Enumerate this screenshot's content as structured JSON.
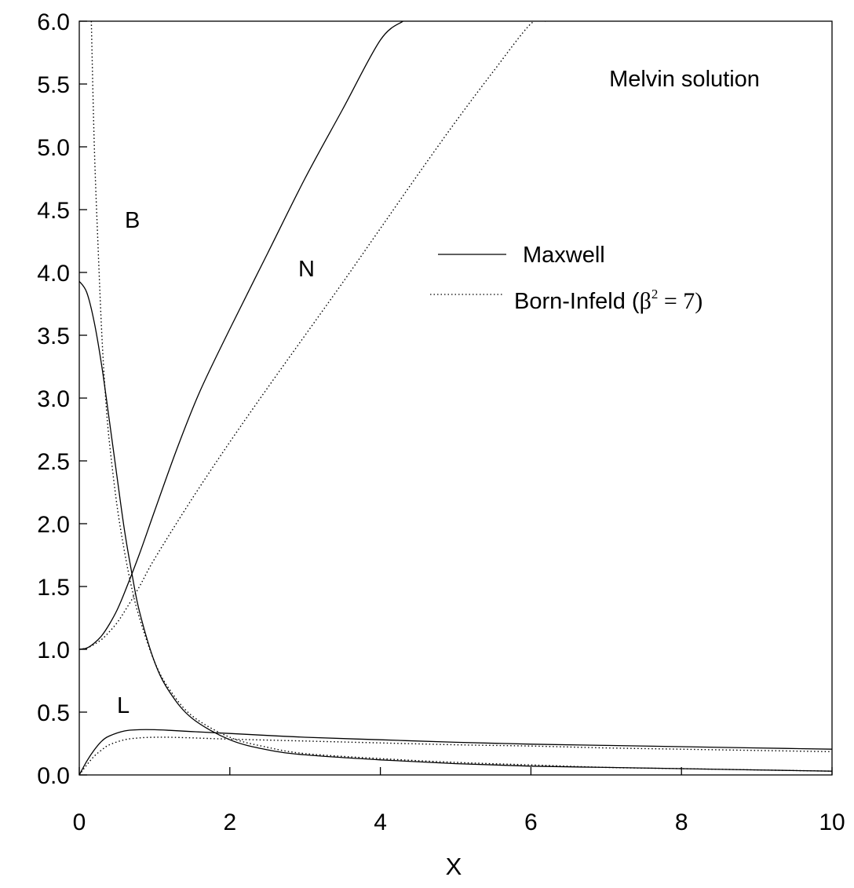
{
  "chart_data": {
    "type": "line",
    "title": "",
    "annotation": "Melvin solution",
    "xlabel": "X",
    "ylabel": "",
    "xlim": [
      0,
      10
    ],
    "ylim": [
      0,
      6
    ],
    "xticks": [
      "0",
      "2",
      "4",
      "6",
      "8",
      "10"
    ],
    "yticks": [
      "0.0",
      "0.5",
      "1.0",
      "1.5",
      "2.0",
      "2.5",
      "3.0",
      "3.5",
      "4.0",
      "4.5",
      "5.0",
      "5.5",
      "6.0"
    ],
    "legend": {
      "placement": "upper-right",
      "entries": [
        {
          "label": "Maxwell",
          "style": "solid"
        },
        {
          "label_prefix": "Born-Infeld (",
          "symbol": "β",
          "sup": "2",
          "label_suffix": " = 7)",
          "style": "dotted"
        }
      ]
    },
    "curve_labels": [
      {
        "text": "B",
        "x": 0.72,
        "y": 4.4
      },
      {
        "text": "N",
        "x": 3.03,
        "y": 4.0
      },
      {
        "text": "L",
        "x": 0.6,
        "y": 0.52
      }
    ],
    "series": [
      {
        "curve": "N",
        "model": "Maxwell",
        "style": "solid",
        "x": [
          0,
          0.1,
          0.2,
          0.3,
          0.4,
          0.5,
          0.6,
          0.8,
          1.0,
          1.3,
          1.6,
          2.0,
          2.5,
          3.0,
          3.5,
          4.0,
          4.3
        ],
        "y": [
          1.0,
          1.01,
          1.05,
          1.11,
          1.2,
          1.31,
          1.45,
          1.76,
          2.1,
          2.6,
          3.05,
          3.55,
          4.15,
          4.75,
          5.3,
          5.85,
          6.0
        ]
      },
      {
        "curve": "N",
        "model": "Born-Infeld",
        "style": "dotted",
        "x": [
          0,
          0.1,
          0.2,
          0.3,
          0.4,
          0.5,
          0.6,
          0.8,
          1.0,
          1.5,
          2.0,
          2.5,
          3.0,
          3.5,
          4.0,
          4.5,
          5.0,
          5.5,
          6.0,
          6.2
        ],
        "y": [
          1.0,
          1.01,
          1.04,
          1.08,
          1.14,
          1.21,
          1.3,
          1.5,
          1.72,
          2.2,
          2.65,
          3.08,
          3.5,
          3.92,
          4.35,
          4.78,
          5.2,
          5.6,
          5.98,
          6.0
        ]
      },
      {
        "curve": "B",
        "model": "Maxwell",
        "style": "solid",
        "x": [
          0,
          0.1,
          0.2,
          0.3,
          0.4,
          0.5,
          0.6,
          0.7,
          0.8,
          1.0,
          1.2,
          1.5,
          2.0,
          2.5,
          3.0,
          4.0,
          5.0,
          6.0,
          7.0,
          8.0,
          9.0,
          10.0
        ],
        "y": [
          3.93,
          3.84,
          3.6,
          3.25,
          2.82,
          2.38,
          1.95,
          1.6,
          1.3,
          0.9,
          0.66,
          0.45,
          0.28,
          0.2,
          0.16,
          0.12,
          0.09,
          0.07,
          0.06,
          0.05,
          0.04,
          0.03
        ]
      },
      {
        "curve": "B",
        "model": "Born-Infeld",
        "style": "dotted",
        "x": [
          0.16,
          0.2,
          0.25,
          0.3,
          0.35,
          0.4,
          0.5,
          0.6,
          0.7,
          0.8,
          1.0,
          1.2,
          1.5,
          2.0,
          2.5,
          3.0,
          4.0,
          5.0,
          6.0,
          7.0,
          8.0,
          9.0,
          10.0
        ],
        "y": [
          6.0,
          5.0,
          4.2,
          3.5,
          3.0,
          2.65,
          2.15,
          1.78,
          1.48,
          1.25,
          0.9,
          0.68,
          0.47,
          0.3,
          0.22,
          0.17,
          0.13,
          0.1,
          0.08,
          0.06,
          0.05,
          0.04,
          0.03
        ]
      },
      {
        "curve": "L",
        "model": "Maxwell",
        "style": "solid",
        "x": [
          0,
          0.1,
          0.2,
          0.3,
          0.4,
          0.6,
          0.8,
          1.0,
          1.2,
          1.5,
          2.0,
          3.0,
          4.0,
          5.0,
          6.0,
          7.0,
          8.0,
          9.0,
          10.0
        ],
        "y": [
          0.0,
          0.11,
          0.2,
          0.27,
          0.31,
          0.35,
          0.36,
          0.36,
          0.355,
          0.345,
          0.33,
          0.3,
          0.28,
          0.26,
          0.245,
          0.235,
          0.225,
          0.215,
          0.205
        ]
      },
      {
        "curve": "L",
        "model": "Born-Infeld",
        "style": "dotted",
        "x": [
          0,
          0.1,
          0.2,
          0.3,
          0.4,
          0.6,
          0.8,
          1.0,
          1.2,
          1.5,
          2.0,
          3.0,
          4.0,
          5.0,
          6.0,
          7.0,
          8.0,
          9.0,
          10.0
        ],
        "y": [
          0.0,
          0.08,
          0.15,
          0.2,
          0.24,
          0.28,
          0.295,
          0.3,
          0.3,
          0.295,
          0.285,
          0.27,
          0.255,
          0.24,
          0.23,
          0.215,
          0.205,
          0.195,
          0.185
        ]
      }
    ]
  }
}
